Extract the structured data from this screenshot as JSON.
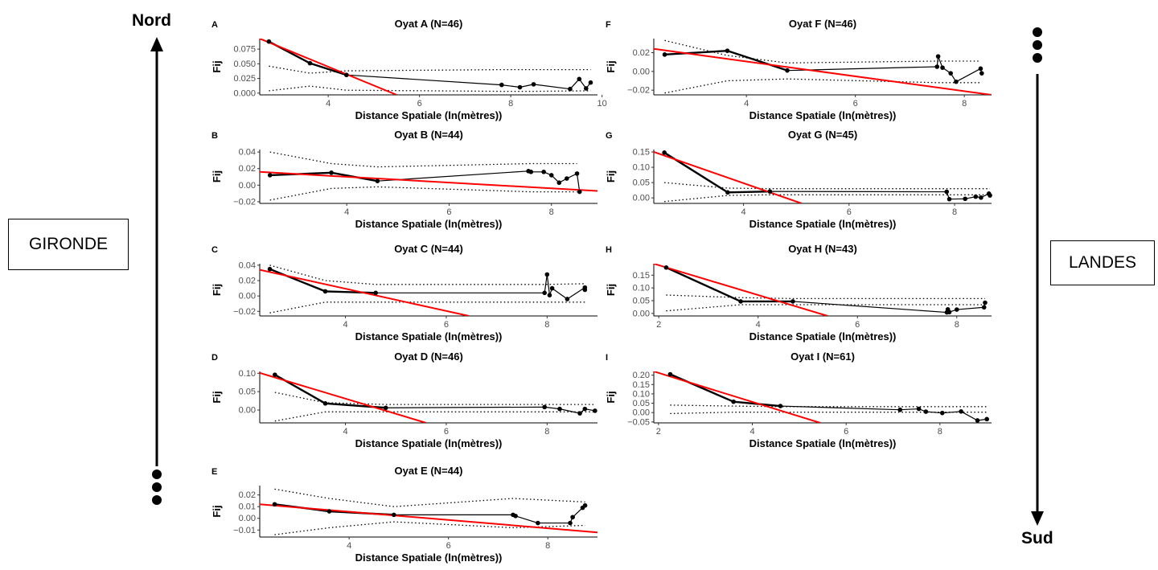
{
  "figure": {
    "north_label": "Nord",
    "south_label": "Sud",
    "left_region": "GIRONDE",
    "right_region": "LANDES"
  },
  "chart_data": [
    {
      "type": "line",
      "panel": "A",
      "title": "Oyat A (N=46)",
      "xlabel": "Distance Spatiale (ln(mètres))",
      "ylabel": "Fij",
      "xlim": [
        2.5,
        9.9
      ],
      "ylim": [
        -0.003,
        0.093
      ],
      "xticks": [
        4,
        6,
        8,
        10
      ],
      "xticklabels": [
        "4",
        "6",
        "8",
        "10"
      ],
      "yticks": [
        0,
        0.025,
        0.05,
        0.075
      ],
      "yticklabels": [
        "0.000",
        "0.025",
        "0.050",
        "0.075"
      ],
      "series": [
        {
          "role": "observed",
          "x": [
            2.7,
            3.6,
            4.4,
            7.8,
            8.2,
            8.5,
            9.3,
            9.5,
            9.65,
            9.75
          ],
          "y": [
            0.088,
            0.051,
            0.031,
            0.014,
            0.01,
            0.015,
            0.007,
            0.024,
            0.008,
            0.018
          ]
        },
        {
          "role": "regression",
          "x": [
            2.5,
            5.5
          ],
          "y": [
            0.093,
            -0.003
          ]
        },
        {
          "role": "upper_envelope",
          "x": [
            2.7,
            3.6,
            4.4,
            7.8,
            8.5,
            9.75
          ],
          "y": [
            0.046,
            0.034,
            0.038,
            0.04,
            0.04,
            0.04
          ]
        },
        {
          "role": "lower_envelope",
          "x": [
            2.7,
            3.6,
            4.4,
            7.8,
            8.5,
            9.75
          ],
          "y": [
            0.004,
            0.012,
            0.005,
            0.003,
            0.003,
            0.004
          ]
        }
      ]
    },
    {
      "type": "line",
      "panel": "B",
      "title": "Oyat B (N=44)",
      "xlabel": "Distance Spatiale (ln(mètres))",
      "ylabel": "Fij",
      "xlim": [
        2.3,
        8.9
      ],
      "ylim": [
        -0.022,
        0.043
      ],
      "xticks": [
        4,
        6,
        8
      ],
      "xticklabels": [
        "4",
        "6",
        "8"
      ],
      "yticks": [
        -0.02,
        0,
        0.02,
        0.04
      ],
      "yticklabels": [
        "−0.02",
        "0.00",
        "0.02",
        "0.04"
      ],
      "series": [
        {
          "role": "observed",
          "x": [
            2.5,
            3.7,
            4.6,
            7.55,
            7.6,
            7.85,
            8.0,
            8.15,
            8.3,
            8.5,
            8.55
          ],
          "y": [
            0.012,
            0.015,
            0.005,
            0.017,
            0.016,
            0.016,
            0.012,
            0.003,
            0.008,
            0.014,
            -0.008
          ]
        },
        {
          "role": "regression",
          "x": [
            2.3,
            8.9
          ],
          "y": [
            0.016,
            -0.007
          ]
        },
        {
          "role": "upper_envelope",
          "x": [
            2.5,
            3.7,
            4.6,
            7.6,
            8.5
          ],
          "y": [
            0.04,
            0.026,
            0.022,
            0.026,
            0.026
          ]
        },
        {
          "role": "lower_envelope",
          "x": [
            2.5,
            3.7,
            4.6,
            7.6,
            8.5
          ],
          "y": [
            -0.018,
            -0.004,
            -0.002,
            -0.008,
            -0.008
          ]
        }
      ]
    },
    {
      "type": "line",
      "panel": "C",
      "title": "Oyat C (N=44)",
      "xlabel": "Distance Spatiale (ln(mètres))",
      "ylabel": "Fij",
      "xlim": [
        2.3,
        9.0
      ],
      "ylim": [
        -0.026,
        0.042
      ],
      "xticks": [
        4,
        6,
        8
      ],
      "xticklabels": [
        "4",
        "6",
        "8"
      ],
      "yticks": [
        -0.02,
        0,
        0.02,
        0.04
      ],
      "yticklabels": [
        "−0.02",
        "0.00",
        "0.02",
        "0.04"
      ],
      "series": [
        {
          "role": "observed",
          "x": [
            2.5,
            3.6,
            4.6,
            7.95,
            8.0,
            8.05,
            8.1,
            8.4,
            8.75,
            8.75
          ],
          "y": [
            0.035,
            0.006,
            0.004,
            0.004,
            0.028,
            0.001,
            0.01,
            -0.004,
            0.011,
            0.008
          ]
        },
        {
          "role": "regression",
          "x": [
            2.3,
            6.45
          ],
          "y": [
            0.034,
            -0.026
          ]
        },
        {
          "role": "upper_envelope",
          "x": [
            2.5,
            3.6,
            4.6,
            8.0,
            8.75
          ],
          "y": [
            0.04,
            0.02,
            0.015,
            0.015,
            0.016
          ]
        },
        {
          "role": "lower_envelope",
          "x": [
            2.5,
            3.6,
            4.6,
            8.0,
            8.75
          ],
          "y": [
            -0.022,
            -0.008,
            -0.008,
            -0.008,
            -0.008
          ]
        }
      ]
    },
    {
      "type": "line",
      "panel": "D",
      "title": "Oyat D (N=46)",
      "xlabel": "Distance Spatiale (ln(mètres))",
      "ylabel": "Fij",
      "xlim": [
        2.3,
        9.0
      ],
      "ylim": [
        -0.035,
        0.105
      ],
      "xticks": [
        4,
        6,
        8
      ],
      "xticklabels": [
        "4",
        "6",
        "8"
      ],
      "yticks": [
        0,
        0.05,
        0.1
      ],
      "yticklabels": [
        "0.00",
        "0.05",
        "0.10"
      ],
      "series": [
        {
          "role": "observed",
          "x": [
            2.6,
            3.6,
            4.8,
            7.95,
            8.25,
            8.65,
            8.75,
            8.95
          ],
          "y": [
            0.096,
            0.018,
            0.006,
            0.008,
            0.003,
            -0.009,
            0.003,
            -0.002
          ]
        },
        {
          "role": "regression",
          "x": [
            2.3,
            5.6
          ],
          "y": [
            0.101,
            -0.035
          ]
        },
        {
          "role": "upper_envelope",
          "x": [
            2.6,
            3.6,
            4.8,
            7.95,
            8.95
          ],
          "y": [
            0.048,
            0.02,
            0.015,
            0.015,
            0.015
          ]
        },
        {
          "role": "lower_envelope",
          "x": [
            2.6,
            3.6,
            4.8,
            7.95,
            8.95
          ],
          "y": [
            -0.03,
            -0.005,
            -0.005,
            -0.005,
            -0.005
          ]
        }
      ]
    },
    {
      "type": "line",
      "panel": "E",
      "title": "Oyat E (N=44)",
      "xlabel": "Distance Spatiale (ln(mètres))",
      "ylabel": "Fij",
      "xlim": [
        2.2,
        9.0
      ],
      "ylim": [
        -0.016,
        0.028
      ],
      "xticks": [
        4,
        6,
        8
      ],
      "xticklabels": [
        "4",
        "6",
        "8"
      ],
      "yticks": [
        -0.01,
        0,
        0.01,
        0.02
      ],
      "yticklabels": [
        "−0.01",
        "0.00",
        "0.01",
        "0.02"
      ],
      "series": [
        {
          "role": "observed",
          "x": [
            2.5,
            3.6,
            4.9,
            7.3,
            7.35,
            7.8,
            8.45,
            8.5,
            8.7,
            8.75
          ],
          "y": [
            0.012,
            0.006,
            0.003,
            0.003,
            0.002,
            -0.004,
            -0.004,
            0.001,
            0.009,
            0.011
          ]
        },
        {
          "role": "regression",
          "x": [
            2.2,
            9.0
          ],
          "y": [
            0.012,
            -0.012
          ]
        },
        {
          "role": "upper_envelope",
          "x": [
            2.5,
            3.6,
            4.9,
            7.3,
            8.75
          ],
          "y": [
            0.025,
            0.017,
            0.01,
            0.017,
            0.014
          ]
        },
        {
          "role": "lower_envelope",
          "x": [
            2.5,
            3.6,
            4.9,
            7.3,
            8.75
          ],
          "y": [
            -0.014,
            -0.008,
            -0.003,
            -0.008,
            -0.006
          ]
        }
      ]
    },
    {
      "type": "line",
      "panel": "F",
      "title": "Oyat F (N=46)",
      "xlabel": "Distance Spatiale (ln(mètres))",
      "ylabel": "Fij",
      "xlim": [
        2.3,
        8.5
      ],
      "ylim": [
        -0.025,
        0.035
      ],
      "xticks": [
        4,
        6,
        8
      ],
      "xticklabels": [
        "4",
        "6",
        "8"
      ],
      "yticks": [
        -0.02,
        0,
        0.02
      ],
      "yticklabels": [
        "−0.02",
        "0.00",
        "0.02"
      ],
      "series": [
        {
          "role": "observed",
          "x": [
            2.5,
            3.65,
            4.75,
            7.5,
            7.52,
            7.6,
            7.75,
            7.85,
            8.3,
            8.32
          ],
          "y": [
            0.018,
            0.022,
            0.001,
            0.005,
            0.016,
            0.004,
            -0.002,
            -0.011,
            0.003,
            -0.002
          ]
        },
        {
          "role": "regression",
          "x": [
            2.3,
            8.5
          ],
          "y": [
            0.024,
            -0.025
          ]
        },
        {
          "role": "upper_envelope",
          "x": [
            2.5,
            3.65,
            4.75,
            7.5,
            8.3
          ],
          "y": [
            0.033,
            0.017,
            0.009,
            0.011,
            0.011
          ]
        },
        {
          "role": "lower_envelope",
          "x": [
            2.5,
            3.65,
            4.75,
            7.5,
            8.3
          ],
          "y": [
            -0.023,
            -0.01,
            -0.008,
            -0.012,
            -0.012
          ]
        }
      ]
    },
    {
      "type": "line",
      "panel": "G",
      "title": "Oyat G (N=45)",
      "xlabel": "Distance Spatiale (ln(mètres))",
      "ylabel": "Fij",
      "xlim": [
        2.3,
        8.7
      ],
      "ylim": [
        -0.018,
        0.158
      ],
      "xticks": [
        4,
        6,
        8
      ],
      "xticklabels": [
        "4",
        "6",
        "8"
      ],
      "yticks": [
        0,
        0.05,
        0.1,
        0.15
      ],
      "yticklabels": [
        "0.00",
        "0.05",
        "0.10",
        "0.15"
      ],
      "series": [
        {
          "role": "observed",
          "x": [
            2.5,
            3.7,
            4.5,
            7.85,
            7.9,
            8.2,
            8.4,
            8.5,
            8.65,
            8.67
          ],
          "y": [
            0.148,
            0.018,
            0.021,
            0.02,
            -0.004,
            -0.003,
            0.004,
            0.001,
            0.014,
            0.008
          ]
        },
        {
          "role": "regression",
          "x": [
            2.3,
            5.1
          ],
          "y": [
            0.15,
            -0.018
          ]
        },
        {
          "role": "upper_envelope",
          "x": [
            2.5,
            3.7,
            4.5,
            7.85,
            8.67
          ],
          "y": [
            0.05,
            0.032,
            0.03,
            0.03,
            0.03
          ]
        },
        {
          "role": "lower_envelope",
          "x": [
            2.5,
            3.7,
            4.5,
            7.85,
            8.67
          ],
          "y": [
            -0.012,
            0.008,
            0.01,
            0.01,
            0.01
          ]
        }
      ]
    },
    {
      "type": "line",
      "panel": "H",
      "title": "Oyat H (N=43)",
      "xlabel": "Distance Spatiale (ln(mètres))",
      "ylabel": "Fij",
      "xlim": [
        1.9,
        8.7
      ],
      "ylim": [
        -0.01,
        0.195
      ],
      "xticks": [
        2,
        4,
        6,
        8
      ],
      "xticklabels": [
        "2",
        "4",
        "6",
        "8"
      ],
      "yticks": [
        0,
        0.05,
        0.1,
        0.15
      ],
      "yticklabels": [
        "0.00",
        "0.05",
        "0.10",
        "0.15"
      ],
      "series": [
        {
          "role": "observed",
          "x": [
            2.15,
            3.65,
            4.7,
            7.8,
            7.82,
            7.85,
            8.0,
            8.55,
            8.57
          ],
          "y": [
            0.18,
            0.047,
            0.047,
            0.004,
            0.016,
            0.005,
            0.015,
            0.024,
            0.042
          ]
        },
        {
          "role": "regression",
          "x": [
            1.9,
            5.4
          ],
          "y": [
            0.195,
            -0.01
          ]
        },
        {
          "role": "upper_envelope",
          "x": [
            2.15,
            3.65,
            4.7,
            7.8,
            8.57
          ],
          "y": [
            0.072,
            0.062,
            0.058,
            0.058,
            0.058
          ]
        },
        {
          "role": "lower_envelope",
          "x": [
            2.15,
            3.65,
            4.7,
            7.8,
            8.57
          ],
          "y": [
            0.01,
            0.034,
            0.034,
            0.034,
            0.034
          ]
        }
      ]
    },
    {
      "type": "line",
      "panel": "I",
      "title": "Oyat I (N=61)",
      "xlabel": "Distance Spatiale (ln(mètres))",
      "ylabel": "Fij",
      "xlim": [
        1.9,
        9.1
      ],
      "ylim": [
        -0.055,
        0.22
      ],
      "xticks": [
        2,
        4,
        6,
        8
      ],
      "xticklabels": [
        "2",
        "4",
        "6",
        "8"
      ],
      "yticks": [
        -0.05,
        0,
        0.05,
        0.1,
        0.15,
        0.2
      ],
      "yticklabels": [
        "−0.05",
        "0.00",
        "0.05",
        "0.10",
        "0.15",
        "0.20"
      ],
      "series": [
        {
          "role": "observed",
          "x": [
            2.25,
            3.6,
            4.6,
            7.15,
            7.55,
            7.7,
            8.05,
            8.45,
            8.8,
            9.0
          ],
          "y": [
            0.205,
            0.058,
            0.035,
            0.015,
            0.02,
            0.005,
            -0.002,
            0.006,
            -0.042,
            -0.035
          ]
        },
        {
          "role": "regression",
          "x": [
            1.9,
            5.45
          ],
          "y": [
            0.22,
            -0.055
          ]
        },
        {
          "role": "upper_envelope",
          "x": [
            2.25,
            3.6,
            4.6,
            7.15,
            9.0
          ],
          "y": [
            0.04,
            0.035,
            0.032,
            0.032,
            0.032
          ]
        },
        {
          "role": "lower_envelope",
          "x": [
            2.25,
            3.6,
            4.6,
            7.15,
            9.0
          ],
          "y": [
            -0.005,
            0.002,
            0.002,
            0.002,
            0.002
          ]
        }
      ]
    }
  ]
}
